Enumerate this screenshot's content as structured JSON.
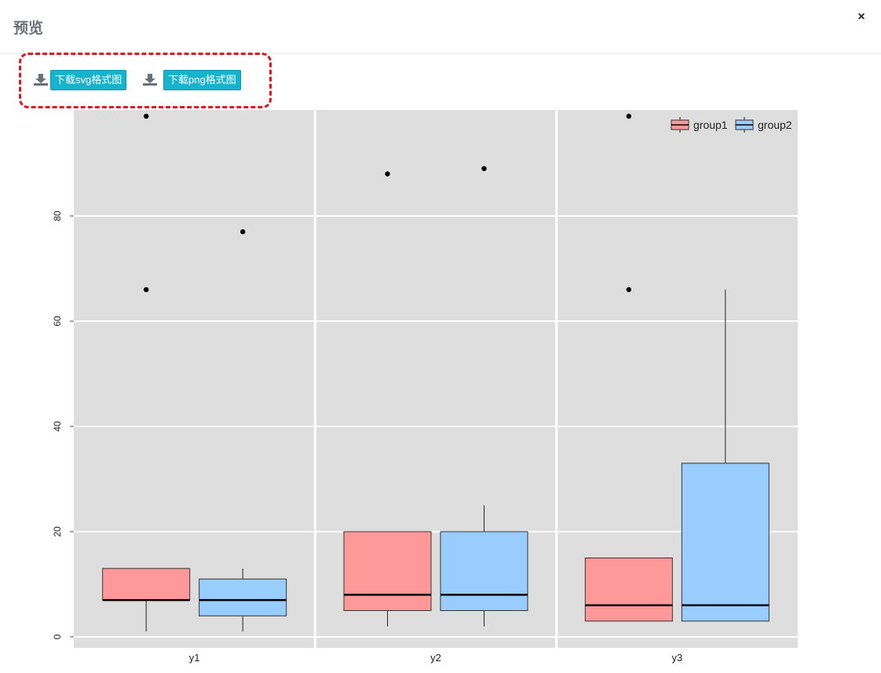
{
  "modal": {
    "title": "预览",
    "close_label": "×"
  },
  "toolbar": {
    "download_svg_label": "下载svg格式图",
    "download_png_label": "下载png格式图",
    "icons": [
      "download-icon",
      "download-icon"
    ],
    "highlight_color": "#e8121c"
  },
  "colors": {
    "button_bg": "#17b3cc",
    "panel_bg": "#dedede",
    "grid": "#ffffff",
    "group1": "#ff9999",
    "group2": "#99ccff"
  },
  "chart_data": {
    "type": "boxplot",
    "title": "",
    "xlabel": "",
    "ylabel": "",
    "categories": [
      "y1",
      "y2",
      "y3"
    ],
    "yticks": [
      0,
      20,
      40,
      60,
      80
    ],
    "ylim": [
      -2,
      100
    ],
    "grid": true,
    "legend_position": "top-right",
    "series": [
      {
        "name": "group1",
        "color": "#ff9999",
        "boxes": [
          {
            "whisker_low": 1,
            "q1": 7,
            "median": 7,
            "q3": 13,
            "whisker_high": 13,
            "outliers": [
              66,
              99
            ]
          },
          {
            "whisker_low": 2,
            "q1": 5,
            "median": 8,
            "q3": 20,
            "whisker_high": 20,
            "outliers": [
              88
            ]
          },
          {
            "whisker_low": 3,
            "q1": 3,
            "median": 6,
            "q3": 15,
            "whisker_high": 15,
            "outliers": [
              66,
              99
            ]
          }
        ]
      },
      {
        "name": "group2",
        "color": "#99ccff",
        "boxes": [
          {
            "whisker_low": 1,
            "q1": 4,
            "median": 7,
            "q3": 11,
            "whisker_high": 13,
            "outliers": [
              77
            ]
          },
          {
            "whisker_low": 2,
            "q1": 5,
            "median": 8,
            "q3": 20,
            "whisker_high": 25,
            "outliers": [
              89
            ]
          },
          {
            "whisker_low": 3,
            "q1": 3,
            "median": 6,
            "q3": 33,
            "whisker_high": 66,
            "outliers": []
          }
        ]
      }
    ]
  }
}
